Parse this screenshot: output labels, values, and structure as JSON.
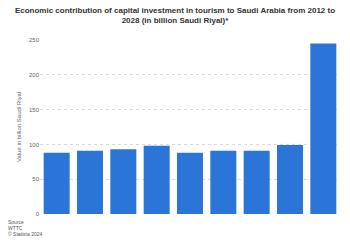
{
  "chart_data": {
    "type": "bar",
    "title": "Economic contribution of capital investment in tourism to Saudi Arabia from 2012 to 2028 (in billion Saudi Riyal)*",
    "y_label": "Value in billion Saudi Riyal",
    "categories": [
      null,
      null,
      null,
      null,
      null,
      null,
      null,
      null,
      null
    ],
    "values": [
      88,
      91,
      93,
      98,
      88,
      91,
      91,
      99,
      245
    ],
    "color": "#2b75d9",
    "ylim": [
      0,
      250
    ],
    "yticks": [
      0,
      50,
      100,
      150,
      200,
      250
    ],
    "grid": true,
    "tick_labels": "y",
    "annotations": [
      "Source",
      "WTTC",
      "© Statista 2024"
    ]
  }
}
